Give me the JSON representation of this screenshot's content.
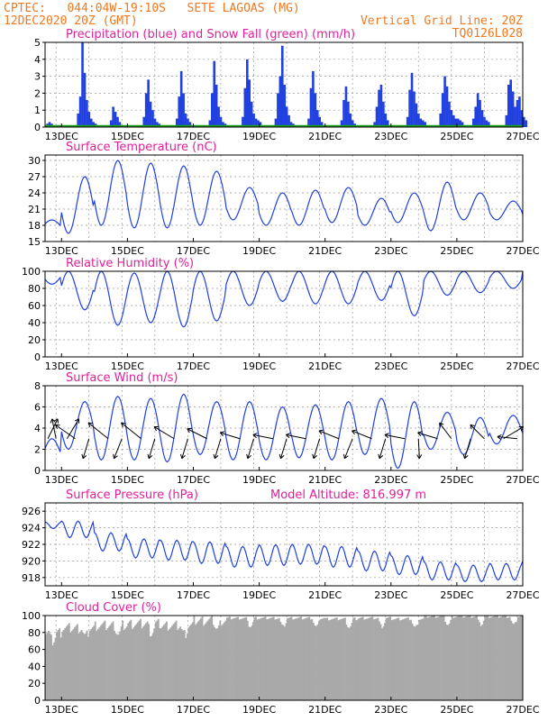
{
  "header": {
    "line1_left": "CPTEC:   044:04W-19:10S   SETE LAGOAS (MG)",
    "line2_left": "12DEC2020 20Z (GMT)",
    "line2_right": "Vertical Grid Line: 20Z",
    "line3_right": "TQ0126L028"
  },
  "colors": {
    "header": "#f07820",
    "title": "#e0209a",
    "line": "#2040e0",
    "snow": "#18a018",
    "cloud": "#a9a9a9",
    "arrow": "#000000"
  },
  "date_axis": {
    "start": "2020-12-12T12:00Z",
    "end": "2020-12-27T00:00Z",
    "labels": [
      "13DEC",
      "15DEC",
      "17DEC",
      "19DEC",
      "21DEC",
      "23DEC",
      "25DEC",
      "27DEC"
    ],
    "label_dates": [
      "2020-12-13",
      "2020-12-15",
      "2020-12-17",
      "2020-12-19",
      "2020-12-21",
      "2020-12-23",
      "2020-12-25",
      "2020-12-27"
    ],
    "vertical_grid": "20Z"
  },
  "chart_data": [
    {
      "id": "precip",
      "type": "bar",
      "title": "Precipitation (blue) and Snow Fall (green) (mm/h)",
      "ylim": [
        0,
        5
      ],
      "yticks": [
        "0",
        "1",
        "2",
        "3",
        "4",
        "5"
      ],
      "series": [
        {
          "name": "Precipitation",
          "color": "#2040e0",
          "events": [
            {
              "d": "2020-12-12",
              "v": [
                0,
                0.2,
                0.3,
                0.2,
                0,
                0,
                0
              ]
            },
            {
              "d": "2020-12-13",
              "v": [
                0.8,
                1.8,
                5.0,
                3.2,
                1.6,
                0.9,
                0.5,
                0.3,
                0.2
              ]
            },
            {
              "d": "2020-12-14",
              "v": [
                0.4,
                1.2,
                0.9,
                0.6,
                0.3
              ]
            },
            {
              "d": "2020-12-15",
              "v": [
                0.6,
                2.0,
                2.8,
                1.5,
                1.0,
                0.5,
                0.3,
                0.2,
                0.1
              ]
            },
            {
              "d": "2020-12-16",
              "v": [
                0.5,
                1.8,
                3.3,
                2.0,
                0.8,
                0.5,
                0.3
              ]
            },
            {
              "d": "2020-12-17",
              "v": [
                0.4,
                2.0,
                3.9,
                2.5,
                1.2,
                0.6,
                0.3,
                0.2
              ]
            },
            {
              "d": "2020-12-18",
              "v": [
                0.6,
                2.3,
                4.0,
                2.8,
                1.5,
                0.8,
                0.5,
                0.4,
                0.3
              ]
            },
            {
              "d": "2020-12-19",
              "v": [
                0.5,
                2.0,
                3.0,
                4.8,
                2.5,
                1.2,
                0.7,
                0.3,
                0.2
              ]
            },
            {
              "d": "2020-12-20",
              "v": [
                0.5,
                2.3,
                3.3,
                2.0,
                1.0,
                0.6,
                0.3
              ]
            },
            {
              "d": "2020-12-21",
              "v": [
                0.4,
                1.6,
                2.4,
                1.5,
                0.8,
                0.4,
                0.2
              ]
            },
            {
              "d": "2020-12-22",
              "v": [
                0.3,
                1.2,
                2.2,
                2.5,
                1.5,
                0.8,
                0.4
              ]
            },
            {
              "d": "2020-12-23",
              "v": [
                0.6,
                2.2,
                3.2,
                2.1,
                1.4,
                0.8,
                0.5,
                0.4,
                0.3
              ]
            },
            {
              "d": "2020-12-24",
              "v": [
                0.8,
                2.0,
                3.0,
                2.4,
                1.5,
                1.0,
                0.7,
                0.5,
                0.5,
                0.4,
                0.3
              ]
            },
            {
              "d": "2020-12-25",
              "v": [
                0.5,
                1.2,
                2.0,
                1.6,
                1.0,
                0.6,
                0.4,
                0.3
              ]
            },
            {
              "d": "2020-12-26",
              "v": [
                0.7,
                2.5,
                2.8,
                2.1,
                1.2,
                1.6,
                1.8,
                1.0,
                0.6,
                0.4
              ]
            }
          ]
        },
        {
          "name": "Snow Fall",
          "color": "#18a018",
          "values": "0 throughout"
        }
      ]
    },
    {
      "id": "temp",
      "type": "line",
      "title": "Surface Temperature (nC)",
      "ylim": [
        15,
        31
      ],
      "yticks": [
        "15",
        "18",
        "21",
        "24",
        "27",
        "30"
      ],
      "daily": [
        {
          "d": "2020-12-12",
          "max": 19,
          "min": 17
        },
        {
          "d": "2020-12-13",
          "max": 27,
          "min": 16.5
        },
        {
          "d": "2020-12-14",
          "max": 30,
          "min": 18
        },
        {
          "d": "2020-12-15",
          "max": 29.5,
          "min": 17.5
        },
        {
          "d": "2020-12-16",
          "max": 29,
          "min": 17.5
        },
        {
          "d": "2020-12-17",
          "max": 28,
          "min": 18
        },
        {
          "d": "2020-12-18",
          "max": 25,
          "min": 19
        },
        {
          "d": "2020-12-19",
          "max": 24,
          "min": 18
        },
        {
          "d": "2020-12-20",
          "max": 24.5,
          "min": 18
        },
        {
          "d": "2020-12-21",
          "max": 25,
          "min": 18.5
        },
        {
          "d": "2020-12-22",
          "max": 23,
          "min": 18
        },
        {
          "d": "2020-12-23",
          "max": 24,
          "min": 18.5
        },
        {
          "d": "2020-12-24",
          "max": 26,
          "min": 17
        },
        {
          "d": "2020-12-25",
          "max": 24,
          "min": 19
        },
        {
          "d": "2020-12-26",
          "max": 22.5,
          "min": 19
        },
        {
          "d": "2020-12-27",
          "max": 20,
          "min": 20
        }
      ]
    },
    {
      "id": "rh",
      "type": "line",
      "title": "Relative Humidity (%)",
      "ylim": [
        0,
        100
      ],
      "yticks": [
        "0",
        "20",
        "40",
        "60",
        "80",
        "100"
      ],
      "daily": [
        {
          "d": "2020-12-12",
          "min": 85,
          "max": 100
        },
        {
          "d": "2020-12-13",
          "min": 55,
          "max": 100
        },
        {
          "d": "2020-12-14",
          "min": 37,
          "max": 100
        },
        {
          "d": "2020-12-15",
          "min": 40,
          "max": 98
        },
        {
          "d": "2020-12-16",
          "min": 35,
          "max": 100
        },
        {
          "d": "2020-12-17",
          "min": 42,
          "max": 100
        },
        {
          "d": "2020-12-18",
          "min": 60,
          "max": 100
        },
        {
          "d": "2020-12-19",
          "min": 65,
          "max": 100
        },
        {
          "d": "2020-12-20",
          "min": 62,
          "max": 100
        },
        {
          "d": "2020-12-21",
          "min": 62,
          "max": 100
        },
        {
          "d": "2020-12-22",
          "min": 66,
          "max": 100
        },
        {
          "d": "2020-12-23",
          "min": 48,
          "max": 100
        },
        {
          "d": "2020-12-24",
          "min": 72,
          "max": 100
        },
        {
          "d": "2020-12-25",
          "min": 75,
          "max": 100
        },
        {
          "d": "2020-12-26",
          "min": 80,
          "max": 100
        },
        {
          "d": "2020-12-27",
          "min": 100,
          "max": 100
        }
      ]
    },
    {
      "id": "wind",
      "type": "line",
      "title": "Surface Wind (m/s)",
      "ylim": [
        0,
        8
      ],
      "yticks": [
        "0",
        "2",
        "4",
        "6",
        "8"
      ],
      "daily": [
        {
          "d": "2020-12-12",
          "max": 3,
          "min": 0.5
        },
        {
          "d": "2020-12-13",
          "max": 6.5,
          "min": 2
        },
        {
          "d": "2020-12-14",
          "max": 7,
          "min": 1
        },
        {
          "d": "2020-12-15",
          "max": 6.8,
          "min": 1
        },
        {
          "d": "2020-12-16",
          "max": 7.2,
          "min": 0.8
        },
        {
          "d": "2020-12-17",
          "max": 6.5,
          "min": 1.5
        },
        {
          "d": "2020-12-18",
          "max": 6.5,
          "min": 1
        },
        {
          "d": "2020-12-19",
          "max": 6,
          "min": 1
        },
        {
          "d": "2020-12-20",
          "max": 6.2,
          "min": 1.2
        },
        {
          "d": "2020-12-21",
          "max": 6.5,
          "min": 1
        },
        {
          "d": "2020-12-22",
          "max": 6.8,
          "min": 1.5
        },
        {
          "d": "2020-12-23",
          "max": 6.5,
          "min": 0.2
        },
        {
          "d": "2020-12-24",
          "max": 5.5,
          "min": 2
        },
        {
          "d": "2020-12-25",
          "max": 5,
          "min": 1.5
        },
        {
          "d": "2020-12-26",
          "max": 5.2,
          "min": 2.5
        }
      ],
      "vectors": [
        {
          "t": "2020-12-12T14:00Z",
          "dx": 0.5,
          "dy": 1
        },
        {
          "t": "2020-12-12T20:00Z",
          "dx": -0.2,
          "dy": 1
        },
        {
          "t": "2020-12-13T04:00Z",
          "dx": 0.6,
          "dy": 1
        },
        {
          "t": "2020-12-13T10:00Z",
          "dx": -1,
          "dy": 0.7
        },
        {
          "t": "2020-12-13T20:00Z",
          "dx": -0.3,
          "dy": -1
        },
        {
          "t": "2020-12-14T10:00Z",
          "dx": -1,
          "dy": 0.8
        },
        {
          "t": "2020-12-14T20:00Z",
          "dx": -0.4,
          "dy": -1
        },
        {
          "t": "2020-12-15T10:00Z",
          "dx": -1,
          "dy": 0.8
        },
        {
          "t": "2020-12-15T20:00Z",
          "dx": -0.3,
          "dy": -1
        },
        {
          "t": "2020-12-16T10:00Z",
          "dx": -1,
          "dy": 0.6
        },
        {
          "t": "2020-12-16T20:00Z",
          "dx": -0.3,
          "dy": -1
        },
        {
          "t": "2020-12-17T10:00Z",
          "dx": -1,
          "dy": 0.5
        },
        {
          "t": "2020-12-17T20:00Z",
          "dx": -0.3,
          "dy": -1
        },
        {
          "t": "2020-12-18T10:00Z",
          "dx": -1,
          "dy": 0.3
        },
        {
          "t": "2020-12-18T20:00Z",
          "dx": -0.3,
          "dy": -1
        },
        {
          "t": "2020-12-19T10:00Z",
          "dx": -1,
          "dy": 0.2
        },
        {
          "t": "2020-12-19T20:00Z",
          "dx": -0.3,
          "dy": -1
        },
        {
          "t": "2020-12-20T10:00Z",
          "dx": -1,
          "dy": 0.2
        },
        {
          "t": "2020-12-20T20:00Z",
          "dx": -0.3,
          "dy": -1
        },
        {
          "t": "2020-12-21T10:00Z",
          "dx": -1,
          "dy": 0.4
        },
        {
          "t": "2020-12-21T20:00Z",
          "dx": -0.4,
          "dy": -1
        },
        {
          "t": "2020-12-22T10:00Z",
          "dx": -1,
          "dy": 0.4
        },
        {
          "t": "2020-12-22T20:00Z",
          "dx": -0.3,
          "dy": -1
        },
        {
          "t": "2020-12-23T10:00Z",
          "dx": -1,
          "dy": 0.2
        },
        {
          "t": "2020-12-23T20:00Z",
          "dx": 0.05,
          "dy": -1
        },
        {
          "t": "2020-12-24T10:00Z",
          "dx": -1,
          "dy": 0.3
        },
        {
          "t": "2020-12-24T20:00Z",
          "dx": -0.6,
          "dy": 0.8
        },
        {
          "t": "2020-12-25T10:00Z",
          "dx": -0.3,
          "dy": -1
        },
        {
          "t": "2020-12-25T20:00Z",
          "dx": -0.7,
          "dy": 0.7
        },
        {
          "t": "2020-12-26T10:00Z",
          "dx": 1,
          "dy": 0.6
        },
        {
          "t": "2020-12-26T20:00Z",
          "dx": -1,
          "dy": 0.1
        }
      ]
    },
    {
      "id": "pres",
      "type": "line",
      "title": "Surface Pressure (hPa)",
      "ylim": [
        917,
        927
      ],
      "yticks": [
        "918",
        "920",
        "922",
        "924",
        "926"
      ],
      "daily": [
        {
          "d": "2020-12-12",
          "mean": 924.3,
          "amp": 0.8
        },
        {
          "d": "2020-12-13",
          "mean": 923.8,
          "amp": 2.0
        },
        {
          "d": "2020-12-14",
          "mean": 922.3,
          "amp": 2.2
        },
        {
          "d": "2020-12-15",
          "mean": 921.5,
          "amp": 2.3
        },
        {
          "d": "2020-12-16",
          "mean": 921.3,
          "amp": 2.4
        },
        {
          "d": "2020-12-17",
          "mean": 921.0,
          "amp": 2.6
        },
        {
          "d": "2020-12-18",
          "mean": 920.5,
          "amp": 2.5
        },
        {
          "d": "2020-12-19",
          "mean": 920.7,
          "amp": 2.5
        },
        {
          "d": "2020-12-20",
          "mean": 920.8,
          "amp": 2.4
        },
        {
          "d": "2020-12-21",
          "mean": 920.5,
          "amp": 2.5
        },
        {
          "d": "2020-12-22",
          "mean": 920.0,
          "amp": 2.4
        },
        {
          "d": "2020-12-23",
          "mean": 919.5,
          "amp": 2.3
        },
        {
          "d": "2020-12-24",
          "mean": 918.8,
          "amp": 2.2
        },
        {
          "d": "2020-12-25",
          "mean": 918.5,
          "amp": 2.0
        },
        {
          "d": "2020-12-26",
          "mean": 918.7,
          "amp": 2.0
        },
        {
          "d": "2020-12-27",
          "mean": 919.5,
          "amp": 1.0
        }
      ],
      "annotation": "Model Altitude: 816.997 m"
    },
    {
      "id": "cloud",
      "type": "area",
      "title": "Cloud Cover (%)",
      "ylim": [
        0,
        100
      ],
      "yticks": [
        "0",
        "20",
        "40",
        "60",
        "80",
        "100"
      ],
      "daily_mean": [
        {
          "d": "2020-12-12",
          "v": 80
        },
        {
          "d": "2020-12-13",
          "v": 85
        },
        {
          "d": "2020-12-14",
          "v": 88
        },
        {
          "d": "2020-12-15",
          "v": 90
        },
        {
          "d": "2020-12-16",
          "v": 88
        },
        {
          "d": "2020-12-17",
          "v": 94
        },
        {
          "d": "2020-12-18",
          "v": 97
        },
        {
          "d": "2020-12-19",
          "v": 97
        },
        {
          "d": "2020-12-20",
          "v": 97
        },
        {
          "d": "2020-12-21",
          "v": 96
        },
        {
          "d": "2020-12-22",
          "v": 97
        },
        {
          "d": "2020-12-23",
          "v": 96
        },
        {
          "d": "2020-12-24",
          "v": 99
        },
        {
          "d": "2020-12-25",
          "v": 99
        },
        {
          "d": "2020-12-26",
          "v": 99
        }
      ]
    }
  ]
}
